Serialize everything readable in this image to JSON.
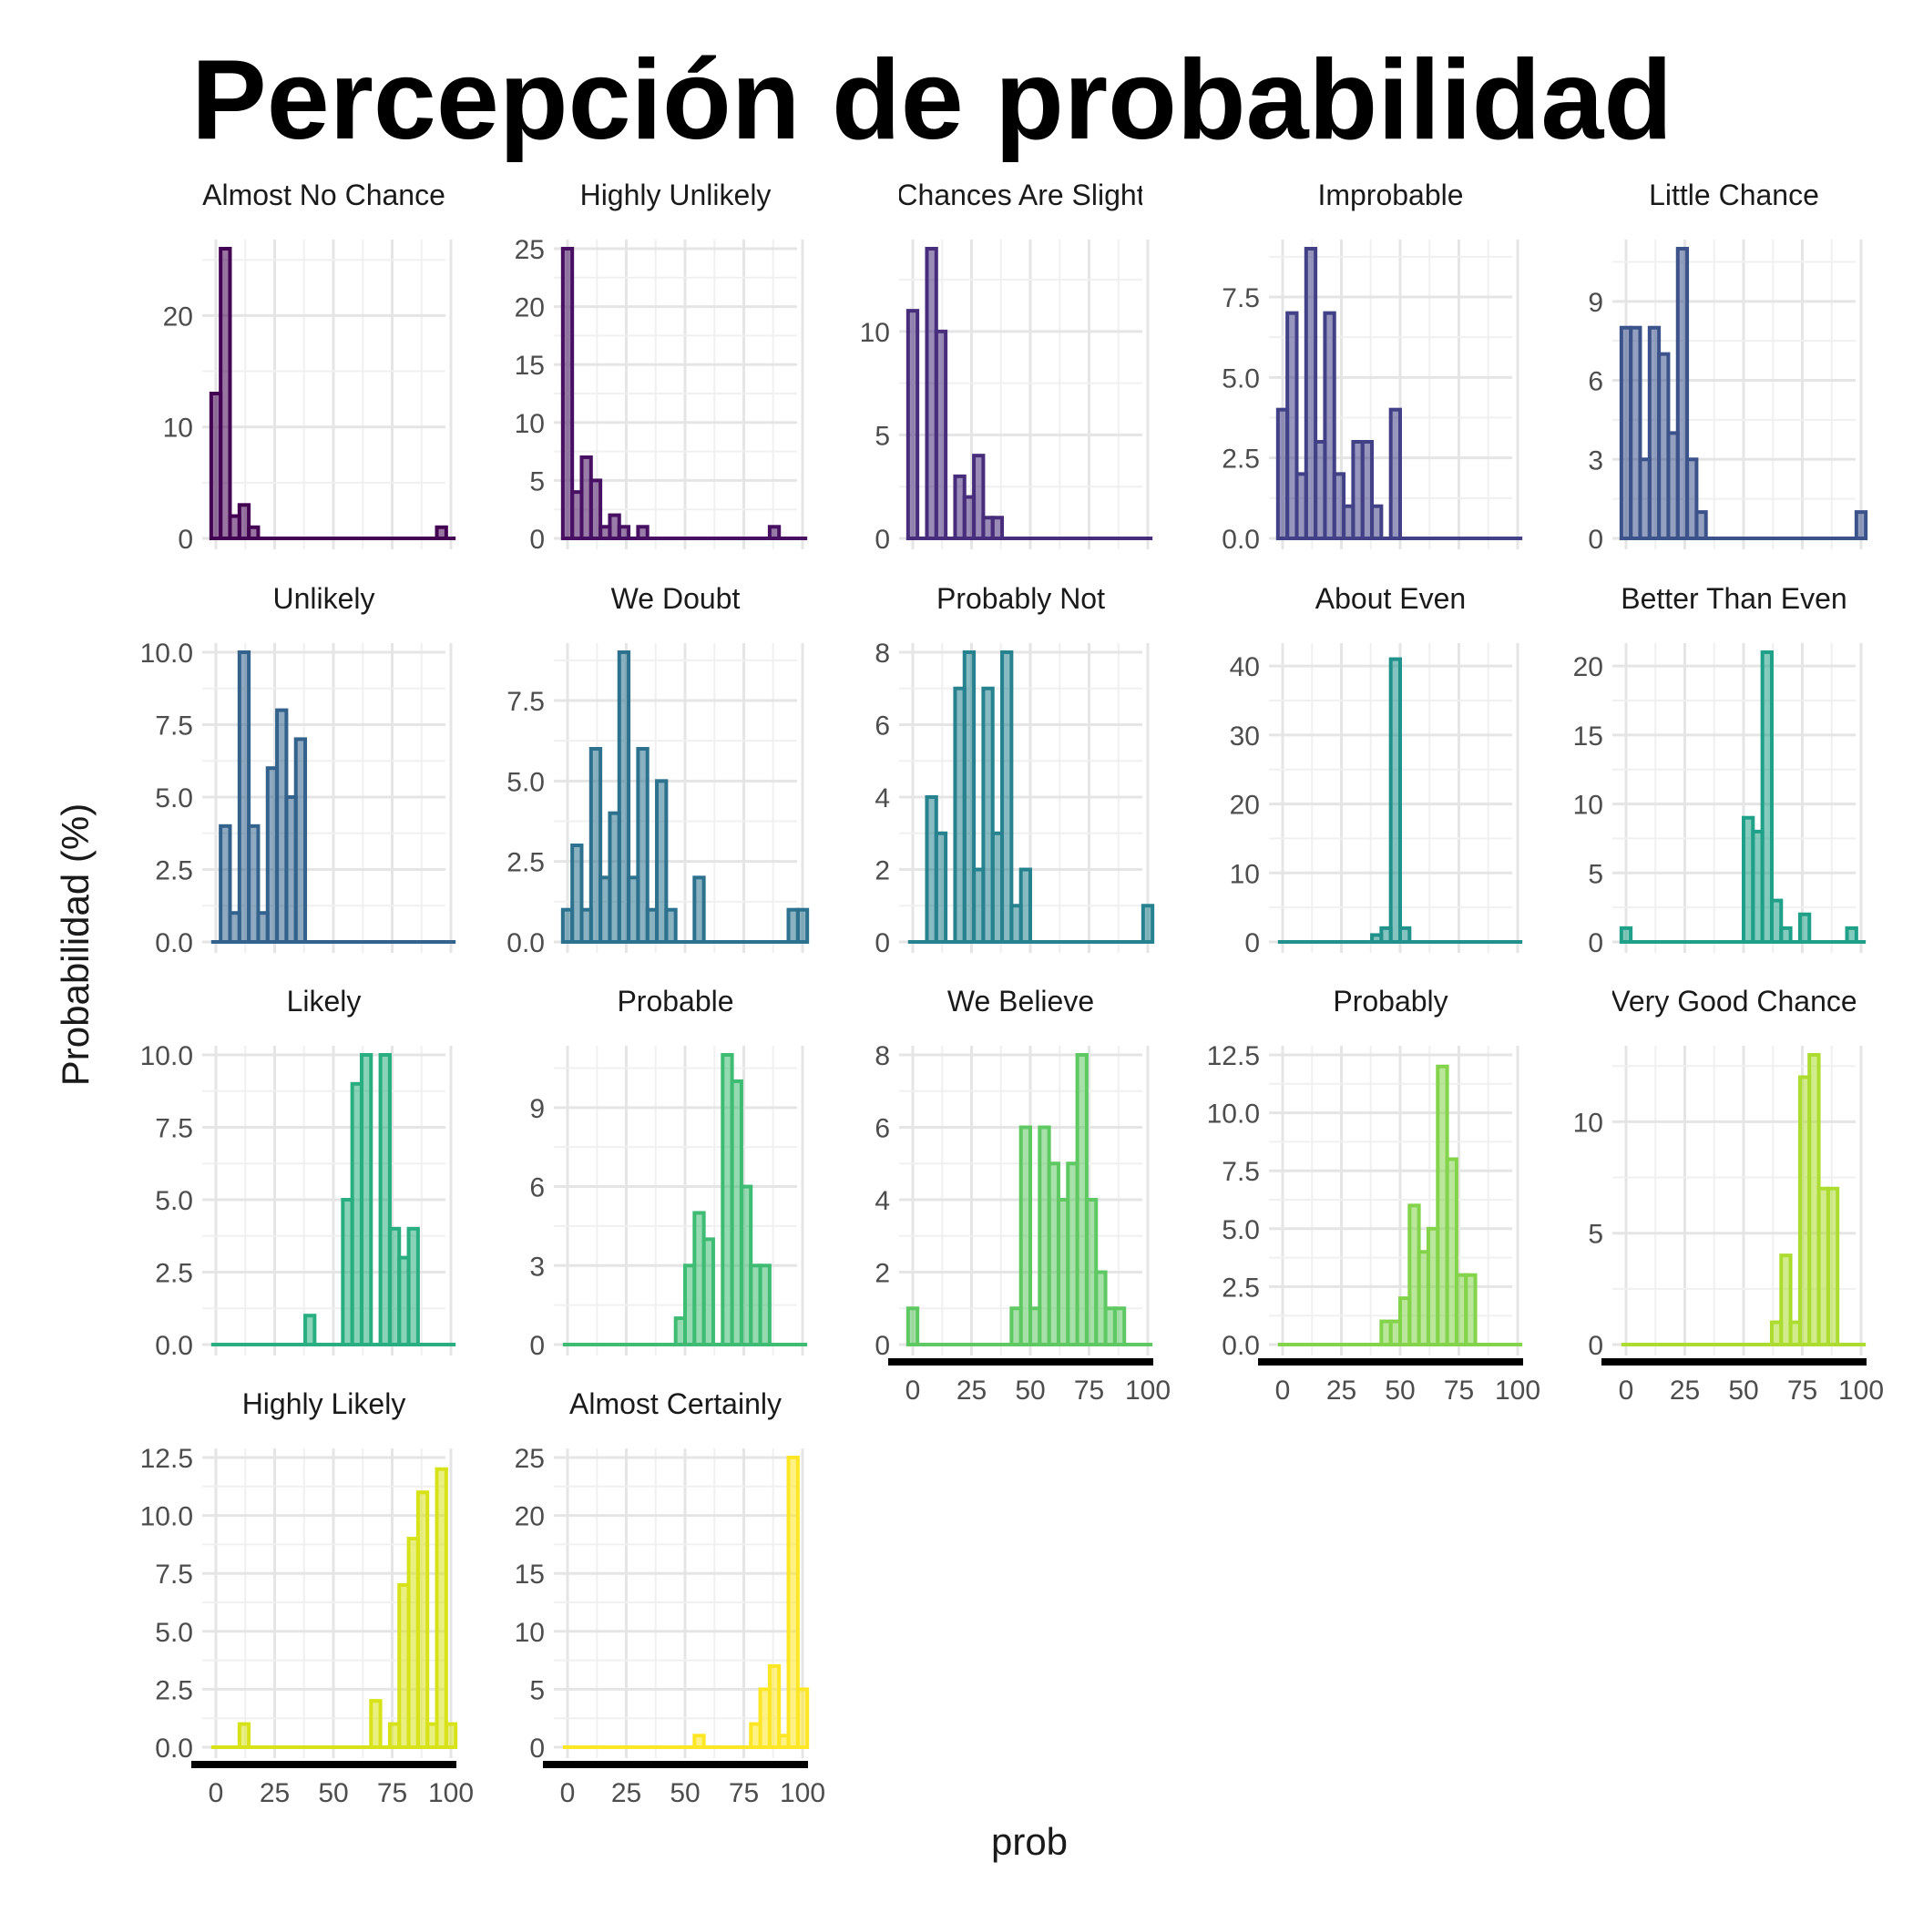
{
  "title": "Percepción de probabilidad",
  "chart_data": {
    "type": "bar",
    "subtype": "histogram-facets",
    "title": "Percepción de probabilidad",
    "xlabel": "prob",
    "ylabel": "Probabilidad (%)",
    "bin_width": 4,
    "xlim": [
      0,
      100
    ],
    "x_ticks": [
      0,
      25,
      50,
      75,
      100
    ],
    "grid": true,
    "legend": "none",
    "layout": {
      "columns": 5,
      "rows": 4
    },
    "colors": [
      "#440154",
      "#471063",
      "#472D7B",
      "#424086",
      "#3B528B",
      "#33638D",
      "#2C728E",
      "#26828E",
      "#21918C",
      "#1FA088",
      "#28AE80",
      "#3FBC73",
      "#5EC962",
      "#84D44B",
      "#ADDC30",
      "#D8E219",
      "#FDE725"
    ],
    "facets": [
      {
        "label": "Almost No Chance",
        "ylim": [
          0,
          26
        ],
        "y_ticks": [
          0,
          10,
          20
        ],
        "tick_labels": [
          "0",
          "10",
          "20"
        ],
        "bins": [
          {
            "x": 0,
            "count": 13
          },
          {
            "x": 4,
            "count": 26
          },
          {
            "x": 8,
            "count": 2
          },
          {
            "x": 12,
            "count": 3
          },
          {
            "x": 16,
            "count": 1
          },
          {
            "x": 96,
            "count": 1
          }
        ]
      },
      {
        "label": "Highly Unlikely",
        "ylim": [
          0,
          25
        ],
        "y_ticks": [
          0,
          5,
          10,
          15,
          20,
          25
        ],
        "tick_labels": [
          "0",
          "5",
          "10",
          "15",
          "20",
          "25"
        ],
        "bins": [
          {
            "x": 0,
            "count": 25
          },
          {
            "x": 4,
            "count": 4
          },
          {
            "x": 8,
            "count": 7
          },
          {
            "x": 12,
            "count": 5
          },
          {
            "x": 16,
            "count": 1
          },
          {
            "x": 20,
            "count": 2
          },
          {
            "x": 24,
            "count": 1
          },
          {
            "x": 32,
            "count": 1
          },
          {
            "x": 88,
            "count": 1
          }
        ]
      },
      {
        "label": "Chances Are Slight",
        "ylim": [
          0,
          14
        ],
        "y_ticks": [
          0,
          5,
          10
        ],
        "tick_labels": [
          "0",
          "5",
          "10"
        ],
        "bins": [
          {
            "x": 0,
            "count": 11
          },
          {
            "x": 8,
            "count": 14
          },
          {
            "x": 12,
            "count": 10
          },
          {
            "x": 20,
            "count": 3
          },
          {
            "x": 24,
            "count": 2
          },
          {
            "x": 28,
            "count": 4
          },
          {
            "x": 32,
            "count": 1
          },
          {
            "x": 36,
            "count": 1
          }
        ]
      },
      {
        "label": "Improbable",
        "ylim": [
          0,
          9
        ],
        "y_ticks": [
          0,
          2.5,
          5,
          7.5
        ],
        "tick_labels": [
          "0.0",
          "2.5",
          "5.0",
          "7.5"
        ],
        "bins": [
          {
            "x": 0,
            "count": 4
          },
          {
            "x": 4,
            "count": 7
          },
          {
            "x": 8,
            "count": 2
          },
          {
            "x": 12,
            "count": 9
          },
          {
            "x": 16,
            "count": 3
          },
          {
            "x": 20,
            "count": 7
          },
          {
            "x": 24,
            "count": 2
          },
          {
            "x": 28,
            "count": 1
          },
          {
            "x": 32,
            "count": 3
          },
          {
            "x": 36,
            "count": 3
          },
          {
            "x": 40,
            "count": 1
          },
          {
            "x": 48,
            "count": 4
          }
        ]
      },
      {
        "label": "Little Chance",
        "ylim": [
          0,
          11
        ],
        "y_ticks": [
          0,
          3,
          6,
          9
        ],
        "tick_labels": [
          "0",
          "3",
          "6",
          "9"
        ],
        "bins": [
          {
            "x": 0,
            "count": 8
          },
          {
            "x": 4,
            "count": 8
          },
          {
            "x": 8,
            "count": 3
          },
          {
            "x": 12,
            "count": 8
          },
          {
            "x": 16,
            "count": 7
          },
          {
            "x": 20,
            "count": 4
          },
          {
            "x": 24,
            "count": 11
          },
          {
            "x": 28,
            "count": 3
          },
          {
            "x": 32,
            "count": 1
          },
          {
            "x": 100,
            "count": 1
          }
        ]
      },
      {
        "label": "Unlikely",
        "ylim": [
          0,
          10
        ],
        "y_ticks": [
          0,
          2.5,
          5,
          7.5,
          10
        ],
        "tick_labels": [
          "0.0",
          "2.5",
          "5.0",
          "7.5",
          "10.0"
        ],
        "bins": [
          {
            "x": 4,
            "count": 4
          },
          {
            "x": 8,
            "count": 1
          },
          {
            "x": 12,
            "count": 10
          },
          {
            "x": 16,
            "count": 4
          },
          {
            "x": 20,
            "count": 1
          },
          {
            "x": 24,
            "count": 6
          },
          {
            "x": 28,
            "count": 8
          },
          {
            "x": 32,
            "count": 5
          },
          {
            "x": 36,
            "count": 7
          }
        ]
      },
      {
        "label": "We Doubt",
        "ylim": [
          0,
          9
        ],
        "y_ticks": [
          0,
          2.5,
          5,
          7.5
        ],
        "tick_labels": [
          "0.0",
          "2.5",
          "5.0",
          "7.5"
        ],
        "bins": [
          {
            "x": 0,
            "count": 1
          },
          {
            "x": 4,
            "count": 3
          },
          {
            "x": 8,
            "count": 1
          },
          {
            "x": 12,
            "count": 6
          },
          {
            "x": 16,
            "count": 2
          },
          {
            "x": 20,
            "count": 4
          },
          {
            "x": 24,
            "count": 9
          },
          {
            "x": 28,
            "count": 2
          },
          {
            "x": 32,
            "count": 6
          },
          {
            "x": 36,
            "count": 1
          },
          {
            "x": 40,
            "count": 5
          },
          {
            "x": 44,
            "count": 1
          },
          {
            "x": 56,
            "count": 2
          },
          {
            "x": 96,
            "count": 1
          },
          {
            "x": 100,
            "count": 1
          }
        ]
      },
      {
        "label": "Probably Not",
        "ylim": [
          0,
          8
        ],
        "y_ticks": [
          0,
          2,
          4,
          6,
          8
        ],
        "tick_labels": [
          "0",
          "2",
          "4",
          "6",
          "8"
        ],
        "bins": [
          {
            "x": 8,
            "count": 4
          },
          {
            "x": 12,
            "count": 3
          },
          {
            "x": 20,
            "count": 7
          },
          {
            "x": 24,
            "count": 8
          },
          {
            "x": 28,
            "count": 2
          },
          {
            "x": 32,
            "count": 7
          },
          {
            "x": 36,
            "count": 3
          },
          {
            "x": 40,
            "count": 8
          },
          {
            "x": 44,
            "count": 1
          },
          {
            "x": 48,
            "count": 2
          },
          {
            "x": 100,
            "count": 1
          }
        ]
      },
      {
        "label": "About Even",
        "ylim": [
          0,
          42
        ],
        "y_ticks": [
          0,
          10,
          20,
          30,
          40
        ],
        "tick_labels": [
          "0",
          "10",
          "20",
          "30",
          "40"
        ],
        "bins": [
          {
            "x": 40,
            "count": 1
          },
          {
            "x": 44,
            "count": 2
          },
          {
            "x": 48,
            "count": 41
          },
          {
            "x": 52,
            "count": 2
          }
        ]
      },
      {
        "label": "Better Than Even",
        "ylim": [
          0,
          21
        ],
        "y_ticks": [
          0,
          5,
          10,
          15,
          20
        ],
        "tick_labels": [
          "0",
          "5",
          "10",
          "15",
          "20"
        ],
        "bins": [
          {
            "x": 0,
            "count": 1
          },
          {
            "x": 52,
            "count": 9
          },
          {
            "x": 56,
            "count": 8
          },
          {
            "x": 60,
            "count": 21
          },
          {
            "x": 64,
            "count": 3
          },
          {
            "x": 68,
            "count": 1
          },
          {
            "x": 76,
            "count": 2
          },
          {
            "x": 96,
            "count": 1
          }
        ]
      },
      {
        "label": "Likely",
        "ylim": [
          0,
          10
        ],
        "y_ticks": [
          0,
          2.5,
          5,
          7.5,
          10
        ],
        "tick_labels": [
          "0.0",
          "2.5",
          "5.0",
          "7.5",
          "10.0"
        ],
        "bins": [
          {
            "x": 40,
            "count": 1
          },
          {
            "x": 56,
            "count": 5
          },
          {
            "x": 60,
            "count": 9
          },
          {
            "x": 64,
            "count": 10
          },
          {
            "x": 72,
            "count": 10
          },
          {
            "x": 76,
            "count": 4
          },
          {
            "x": 80,
            "count": 3
          },
          {
            "x": 84,
            "count": 4
          }
        ]
      },
      {
        "label": "Probable",
        "ylim": [
          0,
          11
        ],
        "y_ticks": [
          0,
          3,
          6,
          9
        ],
        "tick_labels": [
          "0",
          "3",
          "6",
          "9"
        ],
        "bins": [
          {
            "x": 48,
            "count": 1
          },
          {
            "x": 52,
            "count": 3
          },
          {
            "x": 56,
            "count": 5
          },
          {
            "x": 60,
            "count": 4
          },
          {
            "x": 68,
            "count": 11
          },
          {
            "x": 72,
            "count": 10
          },
          {
            "x": 76,
            "count": 6
          },
          {
            "x": 80,
            "count": 3
          },
          {
            "x": 84,
            "count": 3
          }
        ]
      },
      {
        "label": "We Believe",
        "ylim": [
          0,
          8
        ],
        "y_ticks": [
          0,
          2,
          4,
          6,
          8
        ],
        "tick_labels": [
          "0",
          "2",
          "4",
          "6",
          "8"
        ],
        "bins": [
          {
            "x": 0,
            "count": 1
          },
          {
            "x": 44,
            "count": 1
          },
          {
            "x": 48,
            "count": 6
          },
          {
            "x": 52,
            "count": 1
          },
          {
            "x": 56,
            "count": 6
          },
          {
            "x": 60,
            "count": 5
          },
          {
            "x": 64,
            "count": 4
          },
          {
            "x": 68,
            "count": 5
          },
          {
            "x": 72,
            "count": 8
          },
          {
            "x": 76,
            "count": 4
          },
          {
            "x": 80,
            "count": 2
          },
          {
            "x": 84,
            "count": 1
          },
          {
            "x": 88,
            "count": 1
          }
        ]
      },
      {
        "label": "Probably",
        "ylim": [
          0,
          12.5
        ],
        "y_ticks": [
          0,
          2.5,
          5,
          7.5,
          10,
          12.5
        ],
        "tick_labels": [
          "0.0",
          "2.5",
          "5.0",
          "7.5",
          "10.0",
          "12.5"
        ],
        "bins": [
          {
            "x": 44,
            "count": 1
          },
          {
            "x": 48,
            "count": 1
          },
          {
            "x": 52,
            "count": 2
          },
          {
            "x": 56,
            "count": 6
          },
          {
            "x": 60,
            "count": 4
          },
          {
            "x": 64,
            "count": 5
          },
          {
            "x": 68,
            "count": 12
          },
          {
            "x": 72,
            "count": 8
          },
          {
            "x": 76,
            "count": 3
          },
          {
            "x": 80,
            "count": 3
          }
        ]
      },
      {
        "label": "Very Good Chance",
        "ylim": [
          0,
          13
        ],
        "y_ticks": [
          0,
          5,
          10
        ],
        "tick_labels": [
          "0",
          "5",
          "10"
        ],
        "bins": [
          {
            "x": 64,
            "count": 1
          },
          {
            "x": 68,
            "count": 4
          },
          {
            "x": 72,
            "count": 1
          },
          {
            "x": 76,
            "count": 12
          },
          {
            "x": 80,
            "count": 13
          },
          {
            "x": 84,
            "count": 7
          },
          {
            "x": 88,
            "count": 7
          }
        ]
      },
      {
        "label": "Highly Likely",
        "ylim": [
          0,
          12.5
        ],
        "y_ticks": [
          0,
          2.5,
          5,
          7.5,
          10,
          12.5
        ],
        "tick_labels": [
          "0.0",
          "2.5",
          "5.0",
          "7.5",
          "10.0",
          "12.5"
        ],
        "bins": [
          {
            "x": 12,
            "count": 1
          },
          {
            "x": 68,
            "count": 2
          },
          {
            "x": 76,
            "count": 1
          },
          {
            "x": 80,
            "count": 7
          },
          {
            "x": 84,
            "count": 9
          },
          {
            "x": 88,
            "count": 11
          },
          {
            "x": 92,
            "count": 1
          },
          {
            "x": 96,
            "count": 12
          },
          {
            "x": 100,
            "count": 1
          }
        ]
      },
      {
        "label": "Almost Certainly",
        "ylim": [
          0,
          25
        ],
        "y_ticks": [
          0,
          5,
          10,
          15,
          20,
          25
        ],
        "tick_labels": [
          "0",
          "5",
          "10",
          "15",
          "20",
          "25"
        ],
        "bins": [
          {
            "x": 56,
            "count": 1
          },
          {
            "x": 80,
            "count": 2
          },
          {
            "x": 84,
            "count": 5
          },
          {
            "x": 88,
            "count": 7
          },
          {
            "x": 92,
            "count": 1
          },
          {
            "x": 96,
            "count": 25
          },
          {
            "x": 100,
            "count": 5
          }
        ]
      }
    ]
  }
}
